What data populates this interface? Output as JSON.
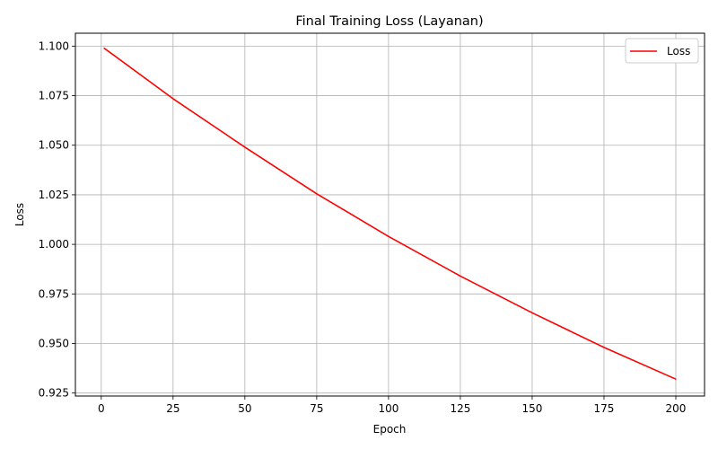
{
  "chart_data": {
    "type": "line",
    "title": "Final Training Loss (Layanan)",
    "xlabel": "Epoch",
    "ylabel": "Loss",
    "xlim": [
      -9,
      210
    ],
    "ylim": [
      0.9235,
      1.1065
    ],
    "xticks": [
      0,
      25,
      50,
      75,
      100,
      125,
      150,
      175,
      200
    ],
    "xtick_labels": [
      "0",
      "25",
      "50",
      "75",
      "100",
      "125",
      "150",
      "175",
      "200"
    ],
    "yticks": [
      0.925,
      0.95,
      0.975,
      1.0,
      1.025,
      1.05,
      1.075,
      1.1
    ],
    "ytick_labels": [
      "0.925",
      "0.950",
      "0.975",
      "1.000",
      "1.025",
      "1.050",
      "1.075",
      "1.100"
    ],
    "grid": true,
    "legend_position": "top-right",
    "series": [
      {
        "name": "Loss",
        "color": "#ff0000",
        "x": [
          1,
          25,
          50,
          75,
          100,
          125,
          150,
          175,
          200
        ],
        "values": [
          1.099,
          1.0735,
          1.049,
          1.0255,
          1.004,
          0.984,
          0.9655,
          0.948,
          0.932
        ]
      }
    ]
  }
}
